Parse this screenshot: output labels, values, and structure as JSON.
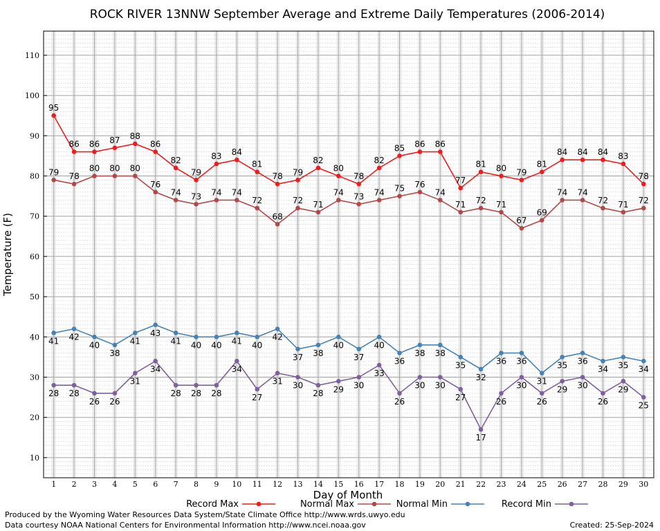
{
  "chart_data": {
    "type": "line",
    "title": "ROCK RIVER 13NNW September Average and Extreme Daily Temperatures (2006-2014)",
    "xlabel": "Day of Month",
    "ylabel": "Temperature (F)",
    "x": [
      1,
      2,
      3,
      4,
      5,
      6,
      7,
      8,
      9,
      10,
      11,
      12,
      13,
      14,
      15,
      16,
      17,
      18,
      19,
      20,
      21,
      22,
      23,
      24,
      25,
      26,
      27,
      28,
      29,
      30
    ],
    "xlim": [
      0.5,
      30.5
    ],
    "ylim": [
      5,
      116
    ],
    "yticks": [
      10,
      20,
      30,
      40,
      50,
      60,
      70,
      80,
      90,
      100,
      110
    ],
    "grid": true,
    "legend": "bottom",
    "series": [
      {
        "name": "Record Max",
        "color": "#ee1c1c",
        "label_pos": "above",
        "values": [
          95,
          86,
          86,
          87,
          88,
          86,
          82,
          79,
          83,
          84,
          81,
          78,
          79,
          82,
          80,
          78,
          82,
          85,
          86,
          86,
          77,
          81,
          80,
          79,
          81,
          84,
          84,
          84,
          83,
          78
        ]
      },
      {
        "name": "Normal Max",
        "color": "#b34848",
        "label_pos": "above",
        "values": [
          79,
          78,
          80,
          80,
          80,
          76,
          74,
          73,
          74,
          74,
          72,
          68,
          72,
          71,
          74,
          73,
          74,
          75,
          76,
          74,
          71,
          72,
          71,
          67,
          69,
          74,
          74,
          72,
          71,
          72
        ]
      },
      {
        "name": "Normal Min",
        "color": "#4682b4",
        "label_pos": "below",
        "values": [
          41,
          42,
          40,
          38,
          41,
          43,
          41,
          40,
          40,
          41,
          40,
          42,
          37,
          38,
          40,
          37,
          40,
          36,
          38,
          38,
          35,
          32,
          36,
          36,
          31,
          35,
          36,
          34,
          35,
          34
        ]
      },
      {
        "name": "Record Min",
        "color": "#7f5f9f",
        "label_pos": "below",
        "values": [
          28,
          28,
          26,
          26,
          31,
          34,
          28,
          28,
          28,
          34,
          27,
          31,
          30,
          28,
          29,
          30,
          33,
          26,
          30,
          30,
          27,
          17,
          26,
          30,
          26,
          29,
          30,
          26,
          29,
          25
        ]
      }
    ]
  },
  "footer": {
    "credit_line1": "Produced by the Wyoming Water Resources Data System/State Climate Office http://www.wrds.uwyo.edu",
    "credit_line2": "Data courtesy NOAA National Centers for Environmental Information http://www.ncei.noaa.gov",
    "created": "Created:  25-Sep-2024"
  }
}
